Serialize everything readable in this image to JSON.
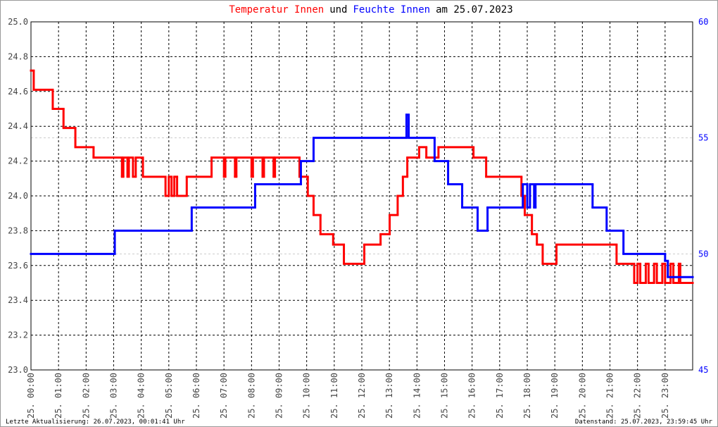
{
  "chart_data": {
    "type": "step-line",
    "title": [
      {
        "text": "Temperatur Innen",
        "color": "#ff0000"
      },
      {
        "text": "und",
        "color": "#000000"
      },
      {
        "text": "Feuchte Innen",
        "color": "#0000ff"
      },
      {
        "text": "am 25.07.2023",
        "color": "#000000"
      }
    ],
    "notes": [
      "Letzte Aktualisierung: 26.07.2023, 00:01:41 Uhr",
      "Datenstand: 25.07.2023, 23:59:45 Uhr"
    ],
    "xlim": [
      0,
      24
    ],
    "xticks": [
      {
        "value": 0,
        "label": "25. 00:00"
      },
      {
        "value": 1,
        "label": "25. 01:00"
      },
      {
        "value": 2,
        "label": "25. 02:00"
      },
      {
        "value": 3,
        "label": "25. 03:00"
      },
      {
        "value": 4,
        "label": "25. 04:00"
      },
      {
        "value": 5,
        "label": "25. 05:00"
      },
      {
        "value": 6,
        "label": "25. 06:00"
      },
      {
        "value": 7,
        "label": "25. 07:00"
      },
      {
        "value": 8,
        "label": "25. 08:00"
      },
      {
        "value": 9,
        "label": "25. 09:00"
      },
      {
        "value": 10,
        "label": "25. 10:00"
      },
      {
        "value": 11,
        "label": "25. 11:00"
      },
      {
        "value": 12,
        "label": "25. 12:00"
      },
      {
        "value": 13,
        "label": "25. 13:00"
      },
      {
        "value": 14,
        "label": "25. 14:00"
      },
      {
        "value": 15,
        "label": "25. 15:00"
      },
      {
        "value": 16,
        "label": "25. 16:00"
      },
      {
        "value": 17,
        "label": "25. 17:00"
      },
      {
        "value": 18,
        "label": "25. 18:00"
      },
      {
        "value": 19,
        "label": "25. 19:00"
      },
      {
        "value": 20,
        "label": "25. 20:00"
      },
      {
        "value": 21,
        "label": "25. 21:00"
      },
      {
        "value": 22,
        "label": "25. 22:00"
      },
      {
        "value": 23,
        "label": "25. 23:00"
      }
    ],
    "ylim": [
      23,
      25
    ],
    "yticks": [
      {
        "value": 23,
        "label": "23.0"
      },
      23.2,
      23.4,
      23.6,
      23.8,
      {
        "value": 24,
        "label": "24.0"
      },
      24.2,
      24.4,
      24.6,
      24.8,
      {
        "value": 25,
        "label": "25.0"
      }
    ],
    "y2lim": [
      45,
      60
    ],
    "y2ticks": [
      45,
      50,
      55,
      60
    ],
    "y2color": "#0000ff",
    "grid": true,
    "series": [
      {
        "name": "Temperatur Innen",
        "color": "#ff0000",
        "axis": "y",
        "x": [
          0,
          0.1,
          0.79,
          1.18,
          1.61,
          2.27,
          3.3,
          3.35,
          3.5,
          3.55,
          3.7,
          3.8,
          4.06,
          4.88,
          5.0,
          5.1,
          5.2,
          5.3,
          5.65,
          6.55,
          7.0,
          7.05,
          7.4,
          7.45,
          8.0,
          8.05,
          8.4,
          8.45,
          8.8,
          8.85,
          9.74,
          10.04,
          10.25,
          10.5,
          10.96,
          11.35,
          12.09,
          12.68,
          13.01,
          13.3,
          13.49,
          13.65,
          14.08,
          14.34,
          14.78,
          16.05,
          16.51,
          17.79,
          17.91,
          18.17,
          18.35,
          18.56,
          19.06,
          21.24,
          21.88,
          22.0,
          22.1,
          22.3,
          22.4,
          22.6,
          22.7,
          22.9,
          23.0,
          23.2,
          23.3,
          23.5,
          23.55,
          24
        ],
        "values": [
          24.72,
          24.61,
          24.5,
          24.39,
          24.28,
          24.22,
          24.11,
          24.22,
          24.11,
          24.22,
          24.11,
          24.22,
          24.11,
          24.0,
          24.11,
          24.0,
          24.11,
          24.0,
          24.11,
          24.22,
          24.11,
          24.22,
          24.11,
          24.22,
          24.11,
          24.22,
          24.11,
          24.22,
          24.11,
          24.22,
          24.11,
          24.0,
          23.89,
          23.78,
          23.72,
          23.61,
          23.72,
          23.78,
          23.89,
          24.0,
          24.11,
          24.22,
          24.28,
          24.22,
          24.28,
          24.22,
          24.11,
          24.0,
          23.89,
          23.78,
          23.72,
          23.61,
          23.72,
          23.61,
          23.5,
          23.61,
          23.5,
          23.61,
          23.5,
          23.61,
          23.5,
          23.61,
          23.5,
          23.61,
          23.5,
          23.61,
          23.5,
          23.5
        ]
      },
      {
        "name": "Feuchte Innen",
        "color": "#0000ff",
        "axis": "y2",
        "x": [
          0,
          3.04,
          5.83,
          8.13,
          9.79,
          10.25,
          13.62,
          13.7,
          14.64,
          15.13,
          15.64,
          16.2,
          16.56,
          17.84,
          18.0,
          18.1,
          18.25,
          18.3,
          20.37,
          20.88,
          21.49,
          23.0,
          23.1,
          24
        ],
        "values": [
          50.0,
          51.0,
          52.0,
          53.0,
          54.0,
          55.0,
          56.0,
          55.0,
          54.0,
          53.0,
          52.0,
          51.0,
          52.0,
          53.0,
          52.0,
          53.0,
          52.0,
          53.0,
          52.0,
          51.0,
          50.0,
          49.7,
          49.0,
          49.0
        ]
      }
    ]
  }
}
